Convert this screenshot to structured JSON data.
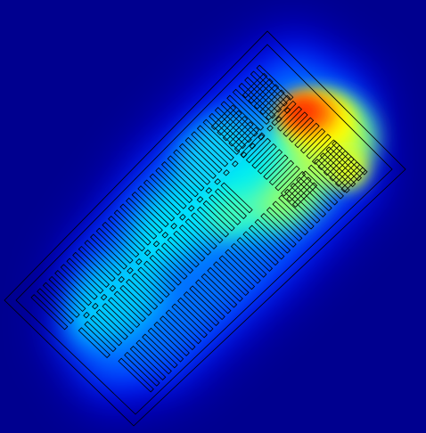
{
  "colors": {
    "background": "#00008f",
    "outline": "#000000",
    "colormap": [
      "#00008f",
      "#0000ff",
      "#0080ff",
      "#00ffff",
      "#80ff80",
      "#ffff00",
      "#ff8000",
      "#ff2000"
    ]
  },
  "icons": {
    "floorplan": "warehouse-floorplan-icon"
  },
  "heatmap": {
    "colormap": "jet",
    "hotspot_level": 0.95,
    "mid_level": 0.55,
    "base_level": 0.3
  }
}
